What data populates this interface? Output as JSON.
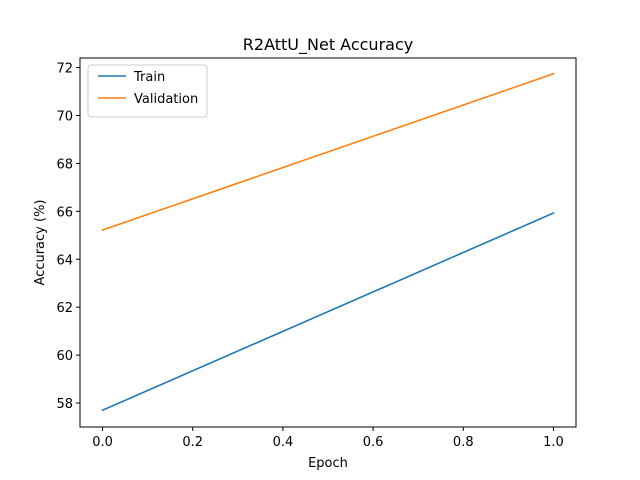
{
  "chart_data": {
    "type": "line",
    "title": "R2AttU_Net Accuracy",
    "xlabel": "Epoch",
    "ylabel": "Accuracy (%)",
    "x": [
      0.0,
      1.0
    ],
    "xlim": [
      -0.05,
      1.05
    ],
    "ylim": [
      57.0,
      72.4
    ],
    "xticks": [
      0.0,
      0.2,
      0.4,
      0.6,
      0.8,
      1.0
    ],
    "xtick_labels": [
      "0.0",
      "0.2",
      "0.4",
      "0.6",
      "0.8",
      "1.0"
    ],
    "yticks": [
      58,
      60,
      62,
      64,
      66,
      68,
      70,
      72
    ],
    "ytick_labels": [
      "58",
      "60",
      "62",
      "64",
      "66",
      "68",
      "70",
      "72"
    ],
    "grid": false,
    "legend_position": "top-left",
    "series": [
      {
        "name": "Train",
        "values": [
          57.7,
          65.93
        ],
        "color": "#1f77b4"
      },
      {
        "name": "Validation",
        "values": [
          65.22,
          71.74
        ],
        "color": "#ff7f0e"
      }
    ]
  }
}
